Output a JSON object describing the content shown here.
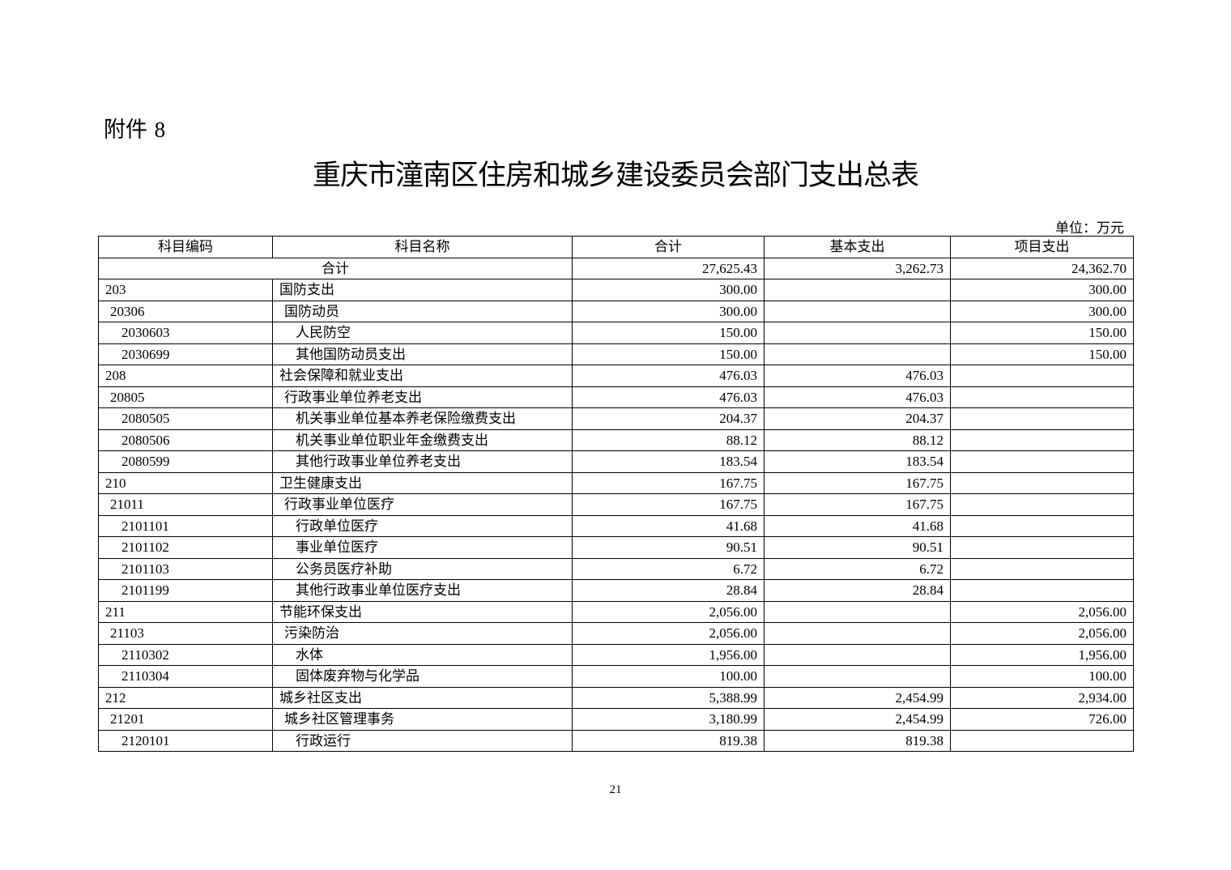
{
  "attachment_label": "附件",
  "attachment_number": "8",
  "title": "重庆市潼南区住房和城乡建设委员会部门支出总表",
  "unit": "单位：万元",
  "table": {
    "headers": [
      "科目编码",
      "科目名称",
      "合计",
      "基本支出",
      "项目支出"
    ],
    "total": {
      "label": "合计",
      "total": "27,625.43",
      "basic": "3,262.73",
      "project": "24,362.70"
    },
    "rows": [
      {
        "level": 1,
        "code": "203",
        "name": "国防支出",
        "total": "300.00",
        "basic": "",
        "project": "300.00"
      },
      {
        "level": 2,
        "code": "20306",
        "name": "国防动员",
        "total": "300.00",
        "basic": "",
        "project": "300.00"
      },
      {
        "level": 3,
        "code": "2030603",
        "name": "人民防空",
        "total": "150.00",
        "basic": "",
        "project": "150.00"
      },
      {
        "level": 3,
        "code": "2030699",
        "name": "其他国防动员支出",
        "total": "150.00",
        "basic": "",
        "project": "150.00"
      },
      {
        "level": 1,
        "code": "208",
        "name": "社会保障和就业支出",
        "total": "476.03",
        "basic": "476.03",
        "project": ""
      },
      {
        "level": 2,
        "code": "20805",
        "name": "行政事业单位养老支出",
        "total": "476.03",
        "basic": "476.03",
        "project": ""
      },
      {
        "level": 3,
        "code": "2080505",
        "name": "机关事业单位基本养老保险缴费支出",
        "total": "204.37",
        "basic": "204.37",
        "project": ""
      },
      {
        "level": 3,
        "code": "2080506",
        "name": "机关事业单位职业年金缴费支出",
        "total": "88.12",
        "basic": "88.12",
        "project": ""
      },
      {
        "level": 3,
        "code": "2080599",
        "name": "其他行政事业单位养老支出",
        "total": "183.54",
        "basic": "183.54",
        "project": ""
      },
      {
        "level": 1,
        "code": "210",
        "name": "卫生健康支出",
        "total": "167.75",
        "basic": "167.75",
        "project": ""
      },
      {
        "level": 2,
        "code": "21011",
        "name": "行政事业单位医疗",
        "total": "167.75",
        "basic": "167.75",
        "project": ""
      },
      {
        "level": 3,
        "code": "2101101",
        "name": "行政单位医疗",
        "total": "41.68",
        "basic": "41.68",
        "project": ""
      },
      {
        "level": 3,
        "code": "2101102",
        "name": "事业单位医疗",
        "total": "90.51",
        "basic": "90.51",
        "project": ""
      },
      {
        "level": 3,
        "code": "2101103",
        "name": "公务员医疗补助",
        "total": "6.72",
        "basic": "6.72",
        "project": ""
      },
      {
        "level": 3,
        "code": "2101199",
        "name": "其他行政事业单位医疗支出",
        "total": "28.84",
        "basic": "28.84",
        "project": ""
      },
      {
        "level": 1,
        "code": "211",
        "name": "节能环保支出",
        "total": "2,056.00",
        "basic": "",
        "project": "2,056.00"
      },
      {
        "level": 2,
        "code": "21103",
        "name": "污染防治",
        "total": "2,056.00",
        "basic": "",
        "project": "2,056.00"
      },
      {
        "level": 3,
        "code": "2110302",
        "name": "水体",
        "total": "1,956.00",
        "basic": "",
        "project": "1,956.00"
      },
      {
        "level": 3,
        "code": "2110304",
        "name": "固体废弃物与化学品",
        "total": "100.00",
        "basic": "",
        "project": "100.00"
      },
      {
        "level": 1,
        "code": "212",
        "name": "城乡社区支出",
        "total": "5,388.99",
        "basic": "2,454.99",
        "project": "2,934.00"
      },
      {
        "level": 2,
        "code": "21201",
        "name": "城乡社区管理事务",
        "total": "3,180.99",
        "basic": "2,454.99",
        "project": "726.00"
      },
      {
        "level": 3,
        "code": "2120101",
        "name": "行政运行",
        "total": "819.38",
        "basic": "819.38",
        "project": ""
      }
    ]
  },
  "page_number": "21"
}
